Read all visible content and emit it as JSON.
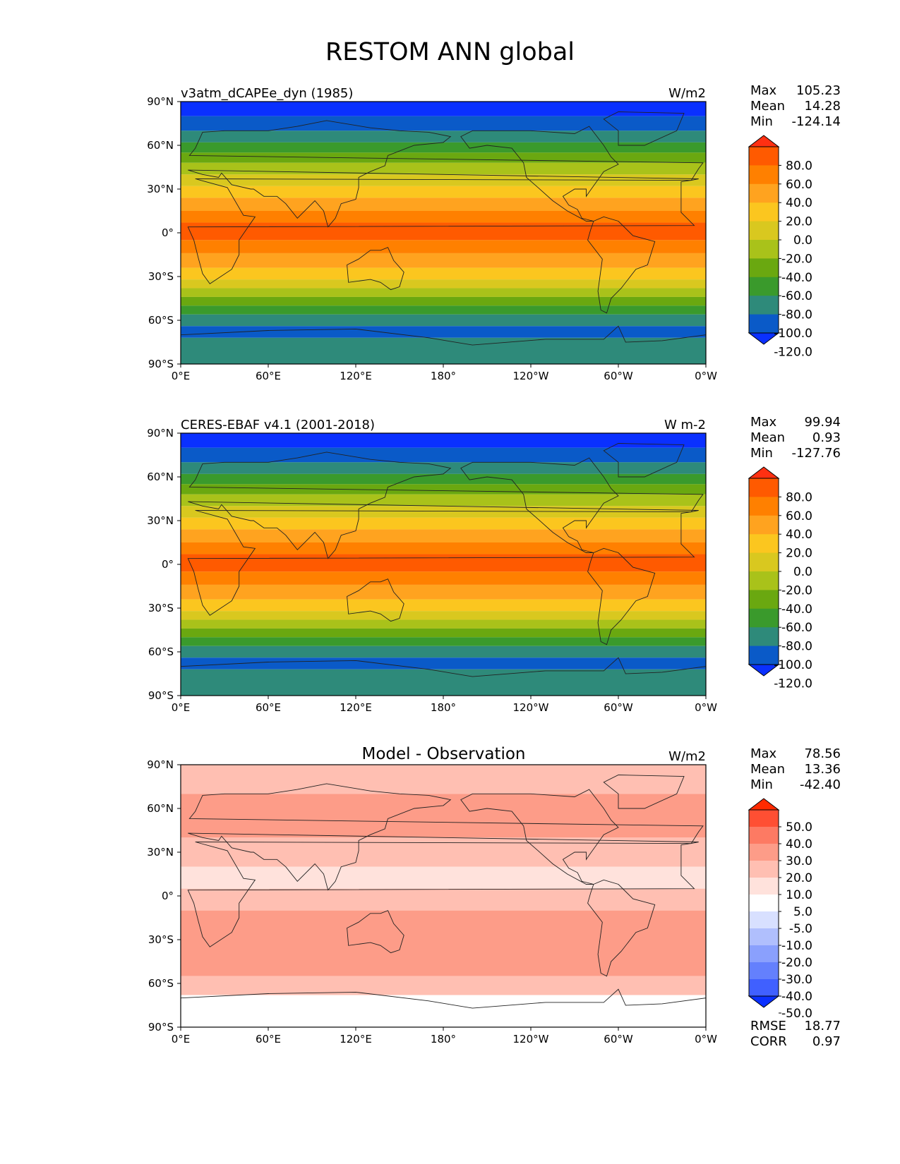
{
  "figure": {
    "title": "RESTOM ANN global"
  },
  "axis_labels": {
    "lat": [
      "90°N",
      "60°N",
      "30°N",
      "0°",
      "30°S",
      "60°S",
      "90°S"
    ],
    "lon": [
      "0°E",
      "60°E",
      "120°E",
      "180°",
      "120°W",
      "60°W",
      "0°W"
    ]
  },
  "panels": [
    {
      "name": "v3atm_dCAPEe_dyn (1985)",
      "units": "W/m2",
      "stats": {
        "max_label": "Max",
        "max": "105.23",
        "mean_label": "Mean",
        "mean": "14.28",
        "min_label": "Min",
        "min": "-124.14"
      },
      "colorbar": {
        "labels": [
          "80.0",
          "60.0",
          "40.0",
          "20.0",
          "0.0",
          "-20.0",
          "-40.0",
          "-60.0",
          "-80.0",
          "-100.0",
          "-120.0"
        ],
        "colors": [
          "#ff3012",
          "#ff5a00",
          "#ff8000",
          "#ffa31f",
          "#fbc61f",
          "#d9c81f",
          "#a9c21a",
          "#6aa810",
          "#3a9a2c",
          "#2e8a7a",
          "#0a5ac8",
          "#0a30ff"
        ]
      },
      "stats_extra": null
    },
    {
      "name": "CERES-EBAF v4.1 (2001-2018)",
      "units": "W m-2",
      "stats": {
        "max_label": "Max",
        "max": "99.94",
        "mean_label": "Mean",
        "mean": "0.93",
        "min_label": "Min",
        "min": "-127.76"
      },
      "colorbar": {
        "labels": [
          "80.0",
          "60.0",
          "40.0",
          "20.0",
          "0.0",
          "-20.0",
          "-40.0",
          "-60.0",
          "-80.0",
          "-100.0",
          "-120.0"
        ],
        "colors": [
          "#ff3012",
          "#ff5a00",
          "#ff8000",
          "#ffa31f",
          "#fbc61f",
          "#d9c81f",
          "#a9c21a",
          "#6aa810",
          "#3a9a2c",
          "#2e8a7a",
          "#0a5ac8",
          "#0a30ff"
        ]
      },
      "stats_extra": null
    },
    {
      "name": "Model - Observation",
      "units": "W/m2",
      "stats": {
        "max_label": "Max",
        "max": "78.56",
        "mean_label": "Mean",
        "mean": "13.36",
        "min_label": "Min",
        "min": "-42.40"
      },
      "colorbar": {
        "labels": [
          "50.0",
          "40.0",
          "30.0",
          "20.0",
          "10.0",
          "5.0",
          "-5.0",
          "-10.0",
          "-20.0",
          "-30.0",
          "-40.0",
          "-50.0"
        ],
        "colors": [
          "#ff2a00",
          "#ff4f33",
          "#fd7a63",
          "#fd9c88",
          "#ffbfb2",
          "#ffe2dc",
          "#ffffff",
          "#d8e0ff",
          "#b0bffd",
          "#8aa0fd",
          "#6480fd",
          "#4060ff",
          "#0a30ff"
        ]
      },
      "stats_extra": {
        "rmse_label": "RMSE",
        "rmse": "18.77",
        "corr_label": "CORR",
        "corr": "0.97"
      }
    }
  ]
}
